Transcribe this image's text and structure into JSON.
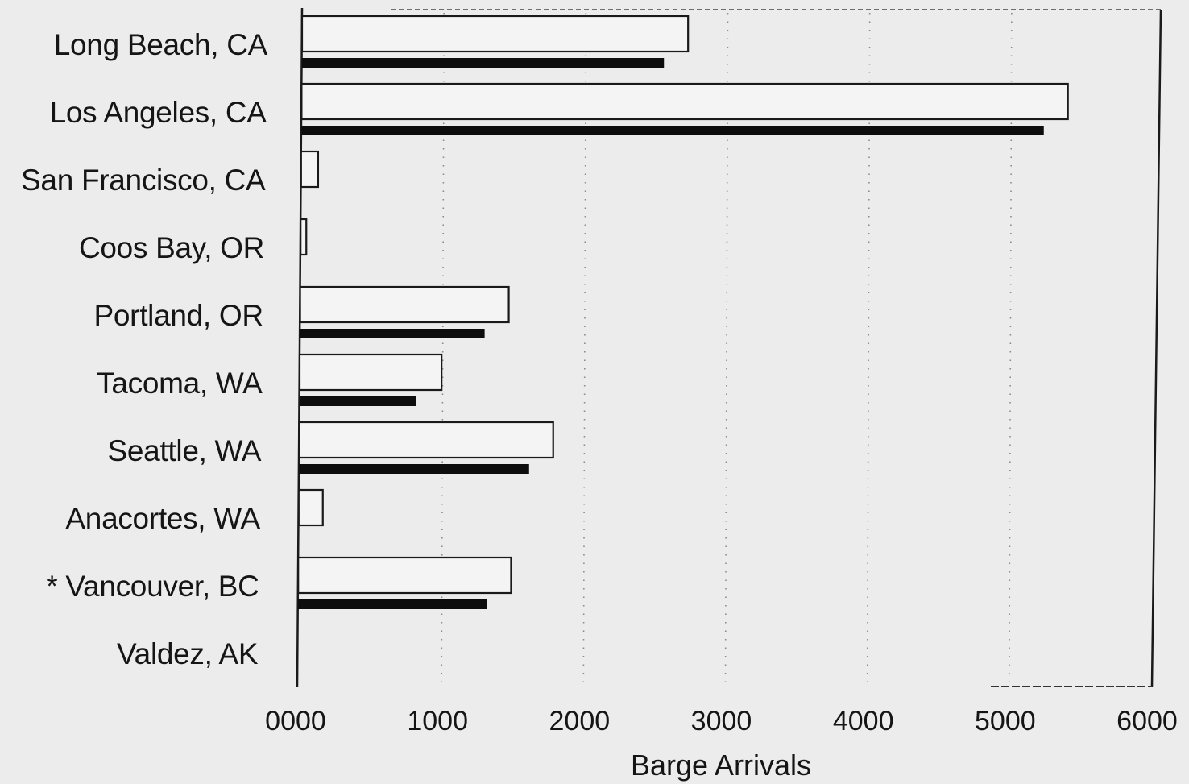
{
  "chart_data": {
    "type": "bar",
    "orientation": "horizontal",
    "categories": [
      "Long Beach, CA",
      "Los Angeles, CA",
      "San Francisco, CA",
      "Coos Bay, OR",
      "Portland, OR",
      "Tacoma, WA",
      "Seattle, WA",
      "Anacortes, WA",
      "* Vancouver, BC",
      "Valdez, AK"
    ],
    "series": [
      {
        "style": "open",
        "color": "#f4f4f4",
        "values": [
          2720,
          5400,
          120,
          40,
          1470,
          1000,
          1790,
          170,
          1500,
          0
        ]
      },
      {
        "style": "solid",
        "color": "#0d0d0d",
        "values": [
          2550,
          5230,
          0,
          0,
          1300,
          820,
          1620,
          0,
          1330,
          0
        ]
      }
    ],
    "x_ticks": [
      "0000",
      "1000",
      "2000",
      "3000",
      "4000",
      "5000",
      "6000"
    ],
    "xlim": [
      0,
      6000
    ],
    "xlabel": "Barge Arrivals",
    "ylabel": "",
    "title": "",
    "grid": "vertical dotted",
    "legend": "none"
  }
}
